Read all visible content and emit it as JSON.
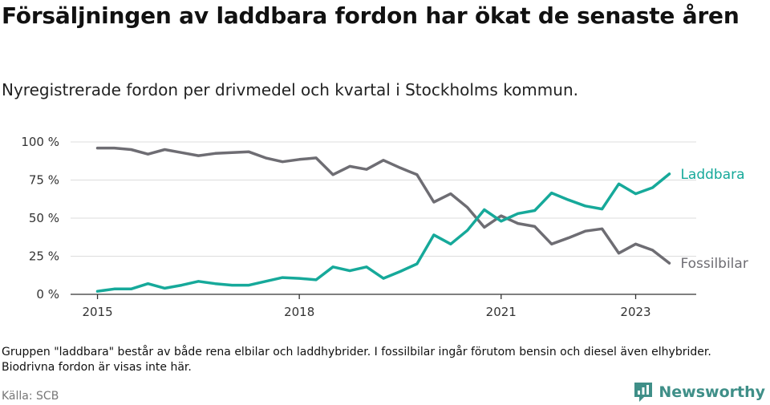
{
  "title": "Försäljningen av laddbara fordon har ökat de senaste åren",
  "subtitle": "Nyregistrerade fordon per drivmedel och kvartal i Stockholms kommun.",
  "note": "Gruppen \"laddbara\" består av både rena elbilar och laddhybrider. I fossilbilar ingår förutom bensin och diesel även elhybrider. Biodrivna fordon är visas inte här.",
  "source": "Källa: SCB",
  "brand": {
    "name": "Newsworthy",
    "icon": "newsworthy-logo-icon"
  },
  "colors": {
    "laddbara": "#16a99a",
    "fossil": "#6e6d73",
    "grid": "#dddddd",
    "axis": "#333333"
  },
  "chart_data": {
    "type": "line",
    "title": "Försäljningen av laddbara fordon har ökat de senaste åren",
    "xlabel": "",
    "ylabel": "",
    "x_start": 2015.0,
    "x_step": 0.25,
    "xlim": [
      2014.6,
      2023.9
    ],
    "ylim": [
      0,
      100
    ],
    "y_ticks": [
      0,
      25,
      50,
      75,
      100
    ],
    "y_tick_labels": [
      "0 %",
      "25 %",
      "50 %",
      "75 %",
      "100 %"
    ],
    "x_ticks": [
      2015,
      2018,
      2021,
      2023
    ],
    "x_tick_labels": [
      "2015",
      "2018",
      "2021",
      "2023"
    ],
    "grid": true,
    "series": [
      {
        "name": "Laddbara",
        "color": "#16a99a",
        "values": [
          2,
          3.5,
          3.5,
          7,
          4,
          6,
          8.5,
          7,
          6,
          6,
          8.5,
          11,
          10.5,
          9.5,
          18,
          15.5,
          18,
          10.5,
          15,
          20,
          39,
          33,
          42,
          55.5,
          48,
          53,
          55,
          66.5,
          62,
          58,
          56,
          72.5,
          66,
          70,
          79
        ]
      },
      {
        "name": "Fossilbilar",
        "color": "#6e6d73",
        "values": [
          96,
          96,
          95,
          92,
          95,
          93,
          91,
          92.5,
          93,
          93.5,
          89.5,
          87,
          88.5,
          89.5,
          78.5,
          84,
          82,
          88,
          83,
          78.5,
          60.5,
          66,
          57,
          44,
          51.5,
          46.5,
          44.5,
          33,
          37,
          41.5,
          43,
          27,
          33,
          29,
          20.5
        ]
      }
    ]
  }
}
